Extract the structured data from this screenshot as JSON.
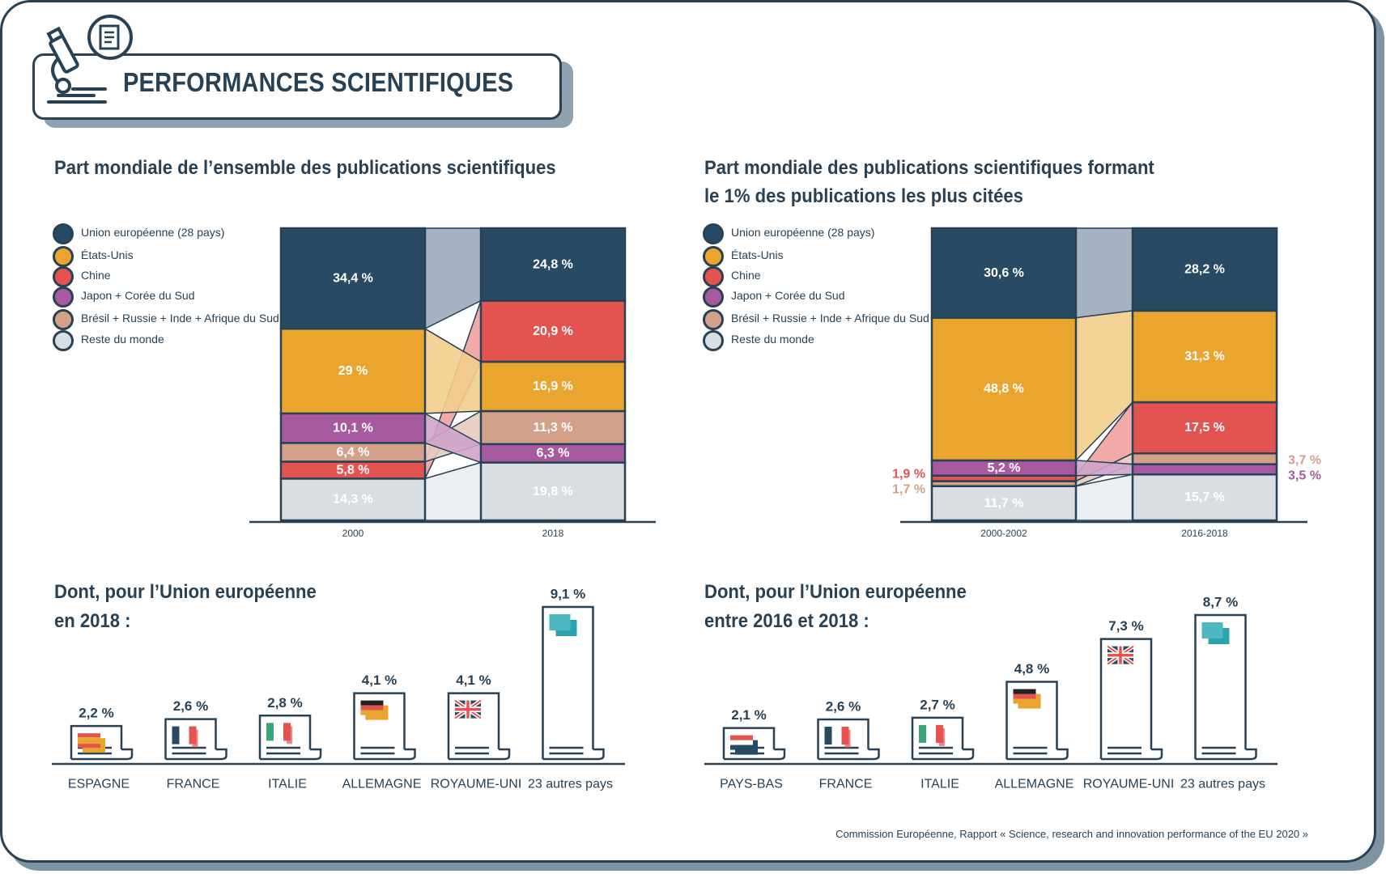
{
  "page": {
    "title": "PERFORMANCES SCIENTIFIQUES"
  },
  "section1": {
    "title": "Part mondiale de l’ensemble des publications scientifiques"
  },
  "section2": {
    "title_line1": "Part mondiale des publications scientifiques formant",
    "title_line2": "le 1% des publications les plus citées"
  },
  "section3": {
    "title_line1": "Dont, pour l’Union européenne",
    "title_line2": "en 2018 :"
  },
  "section4": {
    "title_line1": "Dont, pour l’Union européenne",
    "title_line2": "entre 2016 et 2018 :"
  },
  "legend": [
    {
      "label": "Union européenne (28 pays)",
      "color": "#284a63"
    },
    {
      "label": "États-Unis",
      "color": "#eaa52f"
    },
    {
      "label": "Chine",
      "color": "#e35451"
    },
    {
      "label": "Japon + Corée du Sud",
      "color": "#a75a9f"
    },
    {
      "label": "Brésil + Russie + Inde + Afrique du Sud",
      "color": "#d3a08a"
    },
    {
      "label": "Reste du monde",
      "color": "#d8dee1"
    }
  ],
  "source": "Commission Européenne, Rapport « Science, research and innovation performance of the EU 2020 »",
  "chart_data": [
    {
      "type": "stacked-bar",
      "title": "Part mondiale de l’ensemble des publications scientifiques",
      "categories": [
        "2000",
        "2018"
      ],
      "unit": "%",
      "series": [
        {
          "name": "Union européenne (28 pays)",
          "values": [
            34.4,
            24.8
          ],
          "labels": [
            "34,4 %",
            "24,8 %"
          ]
        },
        {
          "name": "États-Unis",
          "values": [
            29,
            16.9
          ],
          "labels": [
            "29 %",
            "16,9 %"
          ]
        },
        {
          "name": "Chine",
          "values": [
            5.8,
            20.9
          ],
          "labels": [
            "5,8 %",
            "20,9 %"
          ]
        },
        {
          "name": "Japon + Corée du Sud",
          "values": [
            10.1,
            6.3
          ],
          "labels": [
            "10,1 %",
            "6,3 %"
          ]
        },
        {
          "name": "Brésil + Russie + Inde + Afrique du Sud",
          "values": [
            6.4,
            11.3
          ],
          "labels": [
            "6,4 %",
            "11,3 %"
          ]
        },
        {
          "name": "Reste du monde",
          "values": [
            14.3,
            19.8
          ],
          "labels": [
            "14,3 %",
            "19,8 %"
          ]
        }
      ],
      "stack_order_by_category": [
        [
          "Reste du monde",
          "Chine",
          "Brésil + Russie + Inde + Afrique du Sud",
          "Japon + Corée du Sud",
          "États-Unis",
          "Union européenne (28 pays)"
        ],
        [
          "Reste du monde",
          "Japon + Corée du Sud",
          "Brésil + Russie + Inde + Afrique du Sud",
          "États-Unis",
          "Chine",
          "Union européenne (28 pays)"
        ]
      ]
    },
    {
      "type": "stacked-bar",
      "title": "Part mondiale des publications scientifiques formant le 1% des publications les plus citées",
      "categories": [
        "2000-2002",
        "2016-2018"
      ],
      "unit": "%",
      "series": [
        {
          "name": "Union européenne (28 pays)",
          "values": [
            30.6,
            28.2
          ],
          "labels": [
            "30,6 %",
            "28,2 %"
          ]
        },
        {
          "name": "États-Unis",
          "values": [
            48.8,
            31.3
          ],
          "labels": [
            "48,8 %",
            "31,3 %"
          ]
        },
        {
          "name": "Chine",
          "values": [
            1.9,
            17.5
          ],
          "labels": [
            "1,9 %",
            "17,5 %"
          ]
        },
        {
          "name": "Japon + Corée du Sud",
          "values": [
            5.2,
            3.5
          ],
          "labels": [
            "5,2 %",
            "3,5 %"
          ]
        },
        {
          "name": "Brésil + Russie + Inde + Afrique du Sud",
          "values": [
            1.7,
            3.7
          ],
          "labels": [
            "1,7 %",
            "3,7 %"
          ]
        },
        {
          "name": "Reste du monde",
          "values": [
            11.7,
            15.7
          ],
          "labels": [
            "11,7 %",
            "15,7 %"
          ]
        }
      ],
      "stack_order_by_category": [
        [
          "Reste du monde",
          "Brésil + Russie + Inde + Afrique du Sud",
          "Chine",
          "Japon + Corée du Sud",
          "États-Unis",
          "Union européenne (28 pays)"
        ],
        [
          "Reste du monde",
          "Japon + Corée du Sud",
          "Brésil + Russie + Inde + Afrique du Sud",
          "Chine",
          "États-Unis",
          "Union européenne (28 pays)"
        ]
      ]
    },
    {
      "type": "bar",
      "title": "Dont, pour l’Union européenne en 2018 :",
      "categories": [
        "ESPAGNE",
        "FRANCE",
        "ITALIE",
        "ALLEMAGNE",
        "ROYAUME-UNI",
        "23 autres pays"
      ],
      "values": [
        2.2,
        2.6,
        2.8,
        4.1,
        4.1,
        9.1
      ],
      "labels": [
        "2,2 %",
        "2,6 %",
        "2,8 %",
        "4,1 %",
        "4,1 %",
        "9,1 %"
      ],
      "flags": [
        "es",
        "fr",
        "it",
        "de",
        "uk",
        "eu"
      ]
    },
    {
      "type": "bar",
      "title": "Dont, pour l’Union européenne entre 2016 et 2018 :",
      "categories": [
        "PAYS-BAS",
        "FRANCE",
        "ITALIE",
        "ALLEMAGNE",
        "ROYAUME-UNI",
        "23 autres pays"
      ],
      "values": [
        2.1,
        2.6,
        2.7,
        4.8,
        7.3,
        8.7
      ],
      "labels": [
        "2,1 %",
        "2,6 %",
        "2,7 %",
        "4,8 %",
        "7,3 %",
        "8,7 %"
      ],
      "flags": [
        "nl",
        "fr",
        "it",
        "de",
        "uk",
        "eu"
      ]
    }
  ]
}
